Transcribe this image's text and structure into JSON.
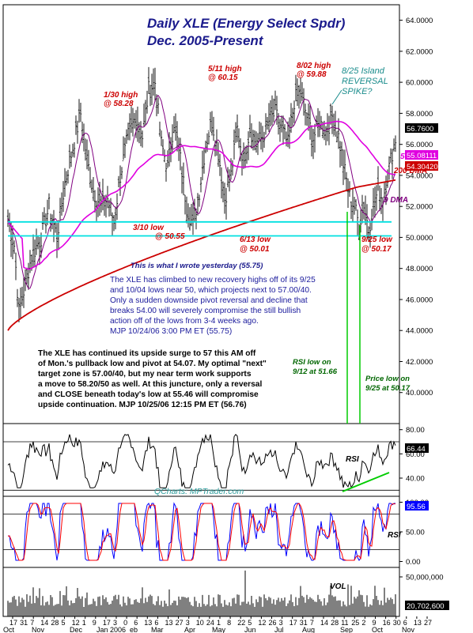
{
  "chart_data": {
    "type": "bar",
    "title_line1": "Daily XLE (Energy Select Spdr)",
    "title_line2": "Dec. 2005-Present",
    "price_panel": {
      "ylim": [
        42,
        64
      ],
      "y_ticks": [
        "64.0000",
        "62.0000",
        "60.0000",
        "58.0000",
        "56.0000",
        "54.0000",
        "52.0000",
        "50.0000",
        "48.0000",
        "46.0000",
        "44.0000",
        "42.0000",
        "40.0000"
      ],
      "last_price_tag": "56.7600",
      "dma50_tag": "55.08111",
      "dma200_tag": "54.30420",
      "support_lines": [
        51.0,
        50.1
      ],
      "series_names": [
        "50 DMA",
        "200 DMA",
        "9 DMA"
      ]
    },
    "rsi_panel": {
      "y_ticks": [
        "80.00",
        "60.00",
        "40.00"
      ],
      "last_tag": "66.44",
      "label": "RSI"
    },
    "stoch_panel": {
      "y_ticks": [
        "100.00",
        "50.00",
        "0.00"
      ],
      "last_tag": "95.56",
      "label": "RSI"
    },
    "volume_panel": {
      "y_ticks": [
        "50,000,000"
      ],
      "last_tag": "20,702,600",
      "label": "VOL"
    },
    "x_tick_labels": [
      "17",
      "31",
      "7",
      "14",
      "28",
      "5",
      "12",
      "1",
      "9",
      "17",
      "3",
      "0",
      "6",
      "13",
      "6",
      "13",
      "27",
      "3",
      "10",
      "24",
      "1",
      "8",
      "22",
      "5",
      "12",
      "26",
      "3",
      "17",
      "31",
      "7",
      "14",
      "28",
      "11",
      "25",
      "2",
      "9",
      "16",
      "30",
      "6",
      "13",
      "27"
    ],
    "month_labels": [
      "Oct",
      "Nov",
      "Dec",
      "Jan 2006",
      "eb",
      "Mar",
      "Apr",
      "May",
      "Jun",
      "Jul",
      "Aug",
      "Sep",
      "Oct",
      "Nov"
    ]
  },
  "annotations": {
    "high_130": [
      "1/30 high",
      "@ 58.28"
    ],
    "high_511": [
      "5/11 high",
      "@ 60.15"
    ],
    "high_802": [
      "8/02 high",
      "@ 59.88"
    ],
    "island": [
      "8/25 Island",
      "REVERSAL",
      "SPIKE?"
    ],
    "low_310": "3/10 low",
    "low_310_val": "@ 50.55",
    "low_613": [
      "6/13 low",
      "@ 50.01"
    ],
    "low_925": [
      "9/25 low",
      "@ 50.17"
    ],
    "dma50": "50 DMA",
    "dma200": "200 DMA",
    "dma9": "9 DMA",
    "rsi_low": [
      "RSI low on",
      "9/12 at 51.66"
    ],
    "price_low": [
      "Price low on",
      "9/25 at 50.17"
    ],
    "wrote_yesterday": "This is what I wrote yesterday (55.75)",
    "blue_note": [
      "The XLE has climbed to new recovery highs off of its 9/25",
      "and 10/04 lows near 50, which projects next to 57.00/40.",
      "Only a sudden downside pivot reversal and decline that",
      "breaks 54.00 will severely compromise the still bullish",
      "action off of the lows from 3-4 weeks ago.",
      "MJP 10/24/06 3:00 PM ET (55.75)"
    ],
    "black_note": [
      "The XLE has continued its upside surge to 57 this AM off",
      "of Mon.'s pullback low and pivot at 54.07. My optimal \"next\"",
      "target zone is 57.00/40, but my near term work supports",
      "a move to 58.20/50 as well. At this juncture, only a reversal",
      "and CLOSE beneath today's low at 55.46 will compromise",
      "upside continuation.  MJP 10/25/06 12:15 PM ET (56.76)"
    ],
    "qcharts": "QCharts: MPTrader.com"
  },
  "colors": {
    "price_bars": "#000000",
    "dma50": "#e000e0",
    "dma200": "#cc0000",
    "dma9": "#800080",
    "support": "#00e0e0",
    "rsi_trend": "#00cc00",
    "vertical_markers": "#00cc00",
    "stoch_fast": "#0000ff",
    "stoch_slow": "#ff0000",
    "last_tag": "#000000",
    "dma50_tag": "#e000e0",
    "dma200_tag": "#cc0000",
    "rsi_tag": "#000000",
    "stoch_tag": "#0000ff"
  }
}
